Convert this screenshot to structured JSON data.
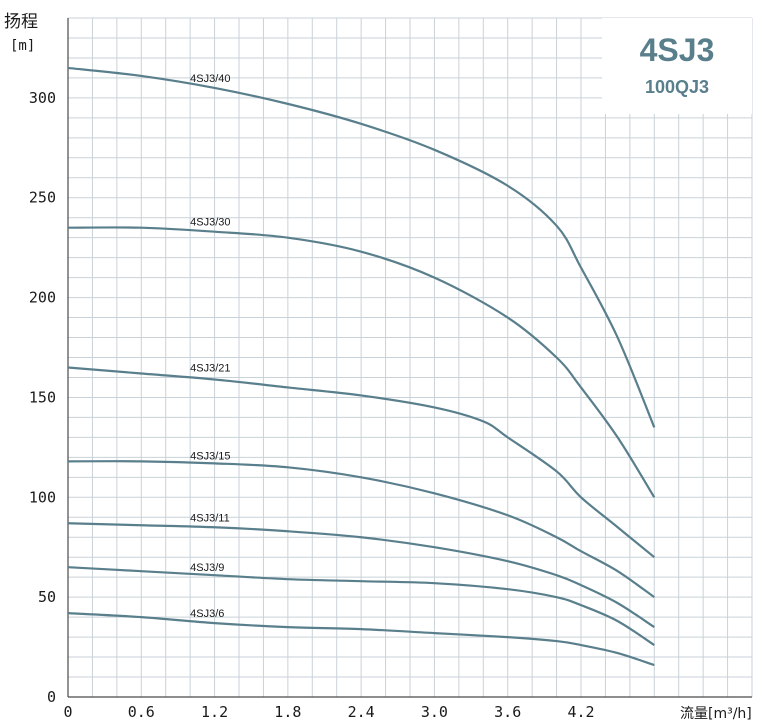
{
  "title_box": {
    "model": "4SJ3",
    "alt_model": "100QJ3"
  },
  "chart_data": {
    "type": "line",
    "ylabel": "扬程",
    "yunit": "[m]",
    "xlabel": "流量[m³/h]",
    "xlim": [
      0,
      5.6
    ],
    "ylim": [
      0,
      340
    ],
    "x_ticks": [
      "0",
      "0.6",
      "1.2",
      "1.8",
      "2.4",
      "3.0",
      "3.6",
      "4.2"
    ],
    "y_ticks": [
      "0",
      "50",
      "100",
      "150",
      "200",
      "250",
      "300"
    ],
    "grid": true,
    "line_color": "#5a7f8c",
    "series": [
      {
        "name": "4SJ3/40",
        "label_x": 1.0,
        "label_y": 308,
        "x": [
          0,
          0.6,
          1.2,
          1.8,
          2.4,
          3.0,
          3.6,
          4.0,
          4.2,
          4.5,
          4.8
        ],
        "y": [
          315,
          311,
          305,
          297,
          287,
          274,
          256,
          236,
          215,
          180,
          135
        ]
      },
      {
        "name": "4SJ3/30",
        "label_x": 1.0,
        "label_y": 236,
        "x": [
          0,
          0.6,
          1.2,
          1.8,
          2.4,
          3.0,
          3.6,
          4.0,
          4.2,
          4.5,
          4.8
        ],
        "y": [
          235,
          235,
          233,
          230,
          223,
          210,
          190,
          170,
          155,
          130,
          100
        ]
      },
      {
        "name": "4SJ3/21",
        "label_x": 1.0,
        "label_y": 163,
        "x": [
          0,
          0.6,
          1.2,
          1.8,
          2.4,
          3.0,
          3.4,
          3.6,
          4.0,
          4.2,
          4.5,
          4.8
        ],
        "y": [
          165,
          162,
          159,
          155,
          151,
          145,
          138,
          130,
          113,
          100,
          85,
          70
        ]
      },
      {
        "name": "4SJ3/15",
        "label_x": 1.0,
        "label_y": 119,
        "x": [
          0,
          0.6,
          1.2,
          1.8,
          2.4,
          3.0,
          3.6,
          4.0,
          4.2,
          4.5,
          4.8
        ],
        "y": [
          118,
          118,
          117,
          115,
          110,
          102,
          91,
          80,
          73,
          63,
          50
        ]
      },
      {
        "name": "4SJ3/11",
        "label_x": 1.0,
        "label_y": 88,
        "x": [
          0,
          0.6,
          1.2,
          1.8,
          2.4,
          3.0,
          3.6,
          4.0,
          4.2,
          4.5,
          4.8
        ],
        "y": [
          87,
          86,
          85,
          83,
          80,
          75,
          68,
          61,
          56,
          47,
          35
        ]
      },
      {
        "name": "4SJ3/9",
        "label_x": 1.0,
        "label_y": 63,
        "x": [
          0,
          0.6,
          1.2,
          1.8,
          2.4,
          3.0,
          3.6,
          4.0,
          4.2,
          4.5,
          4.8
        ],
        "y": [
          65,
          63,
          61,
          59,
          58,
          57,
          54,
          50,
          46,
          38,
          26
        ]
      },
      {
        "name": "4SJ3/6",
        "label_x": 1.0,
        "label_y": 40,
        "x": [
          0,
          0.6,
          1.2,
          1.8,
          2.4,
          3.0,
          3.6,
          4.0,
          4.2,
          4.5,
          4.8
        ],
        "y": [
          42,
          40,
          37,
          35,
          34,
          32,
          30,
          28,
          26,
          22,
          16
        ]
      }
    ]
  }
}
